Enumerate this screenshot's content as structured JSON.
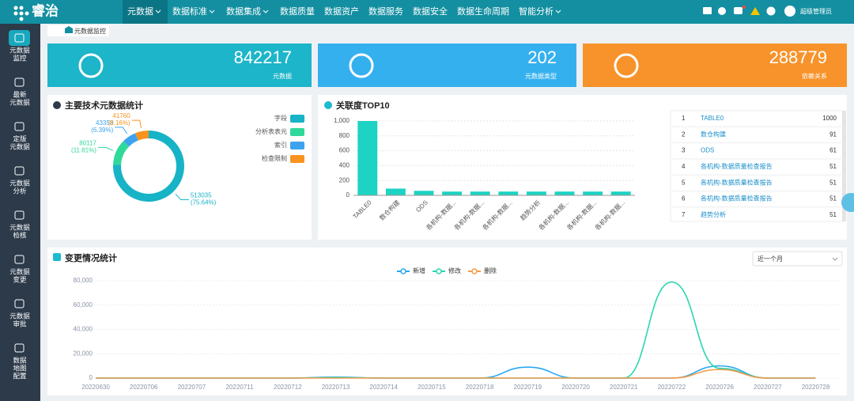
{
  "header": {
    "logo": "睿治",
    "nav": [
      {
        "label": "元数据",
        "dropdown": true
      },
      {
        "label": "数据标准",
        "dropdown": true
      },
      {
        "label": "数据集成",
        "dropdown": true
      },
      {
        "label": "数据质量",
        "dropdown": false
      },
      {
        "label": "数据资产",
        "dropdown": false
      },
      {
        "label": "数据服务",
        "dropdown": false
      },
      {
        "label": "数据安全",
        "dropdown": false
      },
      {
        "label": "数据生命周期",
        "dropdown": false
      },
      {
        "label": "智能分析",
        "dropdown": true
      }
    ],
    "user": "超级管理员"
  },
  "sidebar": [
    [
      "元数据",
      "监控"
    ],
    [
      "最新",
      "元数据"
    ],
    [
      "定版",
      "元数据"
    ],
    [
      "元数据",
      "分析"
    ],
    [
      "元数据",
      "检核"
    ],
    [
      "元数据",
      "变更"
    ],
    [
      "元数据",
      "审批"
    ],
    [
      "数据",
      "地图",
      "配置"
    ]
  ],
  "tab": "元数据监控",
  "stats": [
    {
      "value": 842217,
      "label": "元数据",
      "color": "#1cb5c9"
    },
    {
      "value": 202,
      "label": "元数据类型",
      "color": "#35b0ef"
    },
    {
      "value": 288779,
      "label": "依赖关系",
      "color": "#f7932a"
    }
  ],
  "filter": "近一个月",
  "top10_table": {
    "rows": [
      [
        1,
        "TABLE0",
        1000
      ],
      [
        2,
        "数仓构建",
        91
      ],
      [
        3,
        "ODS",
        61
      ],
      [
        4,
        "各机构-数据质量检查报告",
        51
      ],
      [
        5,
        "各机构-数据质量检查报告",
        51
      ],
      [
        6,
        "各机构-数据质量检查报告",
        51
      ],
      [
        7,
        "趋势分析",
        51
      ]
    ]
  },
  "chart_data": [
    {
      "type": "pie",
      "title": "主要技术元数据统计",
      "categories": [
        "字段",
        "分析表表元",
        "索引",
        "检查限制"
      ],
      "values": [
        513035,
        80117,
        43358,
        41760
      ],
      "percent_labels": [
        "(75.64%)",
        "(11.81%)",
        "(6.39%)",
        "(6.16%)"
      ],
      "colors": [
        "#17b3c6",
        "#2fd99a",
        "#3ea3ee",
        "#f7931e"
      ]
    },
    {
      "type": "bar",
      "title": "关联度TOP10",
      "categories": [
        "TABLE0",
        "数仓构建",
        "ODS",
        "各机构-数据...",
        "各机构-数据...",
        "各机构-数据...",
        "趋势分析",
        "各机构-数据...",
        "各机构-数据...",
        "各机构-数据..."
      ],
      "values": [
        1000,
        91,
        61,
        51,
        51,
        51,
        51,
        51,
        51,
        51
      ],
      "color": "#1dd3c3",
      "ylim": [
        0,
        1000
      ],
      "yticks": [
        0,
        200,
        400,
        600,
        800,
        {
          "value": 1000,
          "label": "1,000"
        }
      ],
      "grid": true
    },
    {
      "type": "line",
      "title": "变更情况统计",
      "categories": [
        "20220630",
        "20220706",
        "20220707",
        "20220711",
        "20220712",
        "20220713",
        "20220714",
        "20220715",
        "20220718",
        "20220719",
        "20220720",
        "20220721",
        "20220722",
        "20220726",
        "20220727",
        "20220728"
      ],
      "series": [
        {
          "name": "新增",
          "color": "#29a8f0",
          "values": [
            0,
            0,
            0,
            0,
            0,
            800,
            0,
            0,
            0,
            9000,
            0,
            0,
            0,
            10000,
            0,
            0
          ]
        },
        {
          "name": "修改",
          "color": "#2bd6b0",
          "values": [
            0,
            0,
            0,
            0,
            0,
            500,
            0,
            0,
            0,
            0,
            0,
            0,
            79000,
            8000,
            0,
            0
          ]
        },
        {
          "name": "删除",
          "color": "#f59a4a",
          "values": [
            0,
            0,
            0,
            0,
            0,
            0,
            0,
            0,
            0,
            0,
            0,
            0,
            0,
            7000,
            0,
            0
          ]
        }
      ],
      "ylim": [
        0,
        80000
      ],
      "yticks": [
        0,
        {
          "value": 20000,
          "label": "20,000"
        },
        {
          "value": 40000,
          "label": "40,000"
        },
        {
          "value": 60000,
          "label": "60,000"
        },
        {
          "value": 80000,
          "label": "80,000"
        }
      ],
      "grid": true
    }
  ]
}
